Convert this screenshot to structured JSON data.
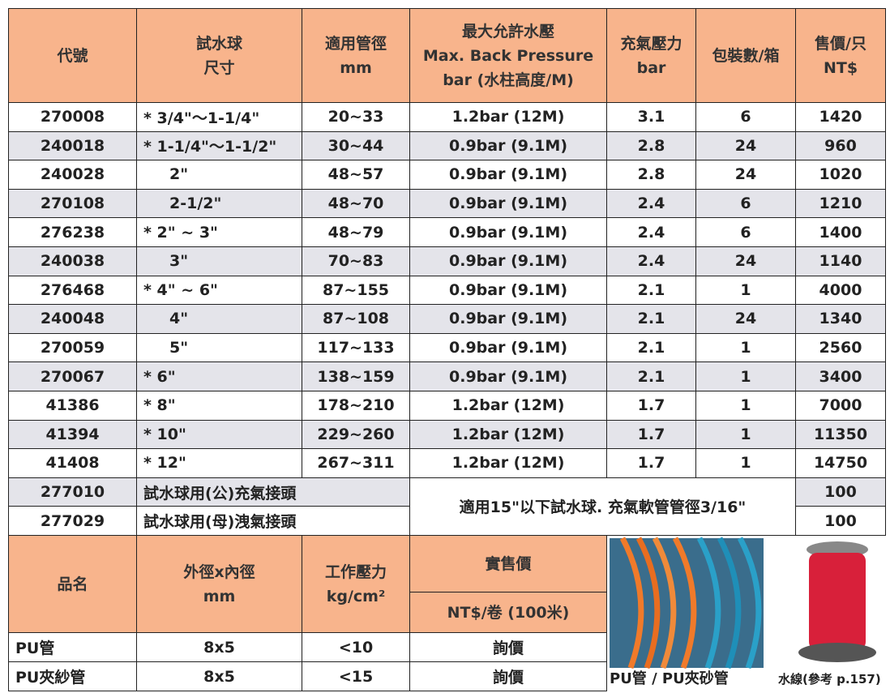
{
  "table": {
    "headers": [
      [
        "代號"
      ],
      [
        "試水球",
        "尺寸"
      ],
      [
        "適用管徑",
        "mm"
      ],
      [
        "最大允許水壓",
        "Max. Back Pressure",
        "bar (水柱高度/M)"
      ],
      [
        "充氣壓力",
        "bar"
      ],
      [
        "包裝數/箱"
      ],
      [
        "售價/只",
        "NT$"
      ]
    ],
    "rows": [
      [
        "270008",
        "* 3/4\"～1-1/4\"",
        "20~33",
        "1.2bar (12M)",
        "3.1",
        "6",
        "1420"
      ],
      [
        "240018",
        "* 1-1/4\"～1-1/2\"",
        "30~44",
        "0.9bar (9.1M)",
        "2.8",
        "24",
        "960"
      ],
      [
        "240028",
        "2\"",
        "48~57",
        "0.9bar (9.1M)",
        "2.8",
        "24",
        "1020"
      ],
      [
        "270108",
        "2-1/2\"",
        "48~70",
        "0.9bar (9.1M)",
        "2.4",
        "6",
        "1210"
      ],
      [
        "276238",
        "* 2\" ~ 3\"",
        "48~79",
        "0.9bar (9.1M)",
        "2.4",
        "6",
        "1400"
      ],
      [
        "240038",
        "3\"",
        "70~83",
        "0.9bar (9.1M)",
        "2.4",
        "24",
        "1140"
      ],
      [
        "276468",
        "* 4\" ~ 6\"",
        "87~155",
        "0.9bar (9.1M)",
        "2.1",
        "1",
        "4000"
      ],
      [
        "240048",
        "4\"",
        "87~108",
        "0.9bar (9.1M)",
        "2.1",
        "24",
        "1340"
      ],
      [
        "270059",
        "5\"",
        "117~133",
        "0.9bar (9.1M)",
        "2.1",
        "1",
        "2560"
      ],
      [
        "270067",
        "* 6\"",
        "138~159",
        "0.9bar (9.1M)",
        "2.1",
        "1",
        "3400"
      ],
      [
        "41386",
        "* 8\"",
        "178~210",
        "1.2bar (12M)",
        "1.7",
        "1",
        "7000"
      ],
      [
        "41394",
        "* 10\"",
        "229~260",
        "1.2bar (12M)",
        "1.7",
        "1",
        "11350"
      ],
      [
        "41408",
        "* 12\"",
        "267~311",
        "1.2bar (12M)",
        "1.7",
        "1",
        "14750"
      ]
    ],
    "accessories": [
      [
        "277010",
        "試水球用(公)充氣接頭",
        "100"
      ],
      [
        "277029",
        "試水球用(母)洩氣接頭",
        "100"
      ]
    ],
    "accessory_note": "適用15\"以下試水球. 充氣軟管管徑3/16\""
  },
  "hose_table": {
    "headers": [
      [
        "品名"
      ],
      [
        "外徑x內徑",
        "mm"
      ],
      [
        "工作壓力",
        "kg/cm²"
      ],
      [
        "實售價"
      ]
    ],
    "price_subheader": "NT$/卷 (100米)",
    "rows": [
      [
        "PU管",
        "8x5",
        "<10",
        "詢價"
      ],
      [
        "PU夾紗管",
        "8x5",
        "<15",
        "詢價"
      ]
    ],
    "captions": [
      "PU管 /  PU夾砂管",
      "水線(參考 p.157)"
    ]
  }
}
